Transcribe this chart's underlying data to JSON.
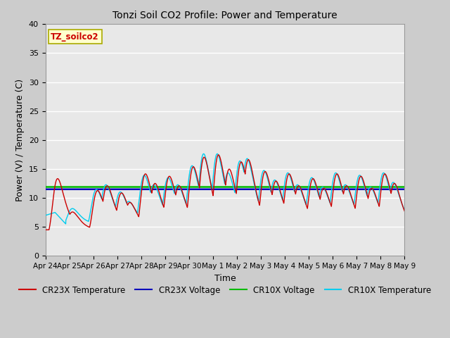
{
  "title": "Tonzi Soil CO2 Profile: Power and Temperature",
  "xlabel": "Time",
  "ylabel": "Power (V) / Temperature (C)",
  "ylim": [
    0,
    40
  ],
  "bg_color": "#cccccc",
  "plot_bg_color": "#e8e8e8",
  "grid_color": "#ffffff",
  "cr23x_temp_color": "#cc0000",
  "cr23x_volt_color": "#0000bb",
  "cr10x_volt_color": "#00bb00",
  "cr10x_temp_color": "#00ccee",
  "cr23x_volt_value": 11.5,
  "cr10x_volt_value": 11.9,
  "xtick_labels": [
    "Apr 24",
    "Apr 25",
    "Apr 26",
    "Apr 27",
    "Apr 28",
    "Apr 29",
    "Apr 30",
    "May 1",
    "May 2",
    "May 3",
    "May 4",
    "May 5",
    "May 6",
    "May 7",
    "May 8",
    "May 9"
  ],
  "legend_label_cr23x_temp": "CR23X Temperature",
  "legend_label_cr23x_volt": "CR23X Voltage",
  "legend_label_cr10x_volt": "CR10X Voltage",
  "legend_label_cr10x_temp": "CR10X Temperature",
  "station_label": "TZ_soilco2",
  "ytick_values": [
    0,
    5,
    10,
    15,
    20,
    25,
    30,
    35,
    40
  ],
  "figwidth": 6.4,
  "figheight": 4.8,
  "dpi": 100
}
